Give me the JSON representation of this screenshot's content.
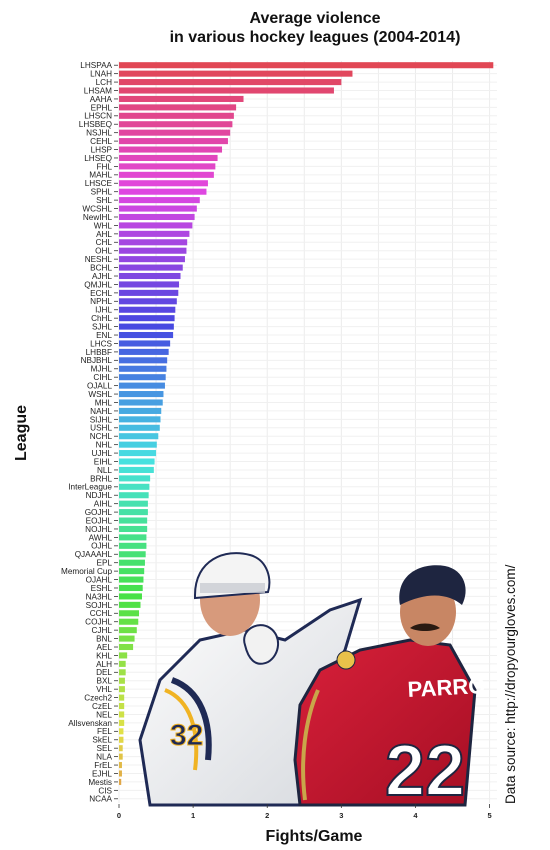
{
  "chart_data": {
    "type": "bar",
    "orientation": "horizontal",
    "title": [
      "Average violence",
      "in various hockey leagues (2004-2014)"
    ],
    "xlabel": "Fights/Game",
    "ylabel": "League",
    "xlim": [
      0,
      5.1
    ],
    "xticks": [
      0,
      1,
      2,
      3,
      4,
      5
    ],
    "grid": true,
    "legend": "none",
    "annotation": "Data source: http://dropyourgloves.com/",
    "categories": [
      "LHSPAA",
      "LNAH",
      "LCH",
      "LHSAM",
      "AAHA",
      "EPHL",
      "LHSCN",
      "LHSBEQ",
      "NSJHL",
      "CEHL",
      "LHSP",
      "LHSEQ",
      "FHL",
      "MAHL",
      "LHSCE",
      "SPHL",
      "SHL",
      "WCSHL",
      "NewIHL",
      "WHL",
      "AHL",
      "CHL",
      "OHL",
      "NESHL",
      "BCHL",
      "AJHL",
      "QMJHL",
      "ECHL",
      "NPHL",
      "IJHL",
      "ChHL",
      "SJHL",
      "ENL",
      "LHCS",
      "LHBBF",
      "NBJBHL",
      "MJHL",
      "CIHL",
      "OJALL",
      "WSHL",
      "MHL",
      "NAHL",
      "SIJHL",
      "USHL",
      "NCHL",
      "NHL",
      "UJHL",
      "EIHL",
      "NLL",
      "BRHL",
      "InterLeague",
      "NDJHL",
      "AIHL",
      "GOJHL",
      "EOJHL",
      "NOJHL",
      "AWHL",
      "OJHL",
      "QJAAAHL",
      "EPL",
      "Memorial Cup",
      "OJAHL",
      "ESHL",
      "NA3HL",
      "SOJHL",
      "CCHL",
      "COJHL",
      "CJHL",
      "BNL",
      "AEL",
      "KHL",
      "ALH",
      "DEL",
      "BXL",
      "VHL",
      "Czech2",
      "CzEL",
      "NEL",
      "Allsvenskan",
      "FEL",
      "SkEL",
      "SEL",
      "NLA",
      "FrEL",
      "EJHL",
      "Mestis",
      "CIS",
      "NCAA"
    ],
    "values": [
      5.05,
      3.15,
      3.0,
      2.9,
      1.68,
      1.58,
      1.55,
      1.53,
      1.5,
      1.47,
      1.39,
      1.33,
      1.3,
      1.28,
      1.2,
      1.18,
      1.09,
      1.05,
      1.02,
      0.99,
      0.95,
      0.92,
      0.91,
      0.89,
      0.86,
      0.83,
      0.81,
      0.8,
      0.78,
      0.76,
      0.75,
      0.74,
      0.73,
      0.69,
      0.67,
      0.65,
      0.64,
      0.63,
      0.62,
      0.6,
      0.59,
      0.57,
      0.56,
      0.55,
      0.53,
      0.51,
      0.5,
      0.48,
      0.47,
      0.42,
      0.41,
      0.4,
      0.39,
      0.39,
      0.38,
      0.38,
      0.37,
      0.37,
      0.36,
      0.35,
      0.34,
      0.33,
      0.32,
      0.31,
      0.29,
      0.27,
      0.26,
      0.24,
      0.21,
      0.19,
      0.11,
      0.09,
      0.09,
      0.08,
      0.08,
      0.07,
      0.07,
      0.07,
      0.07,
      0.06,
      0.06,
      0.05,
      0.05,
      0.04,
      0.04,
      0.03,
      0.0,
      0.0
    ]
  }
}
